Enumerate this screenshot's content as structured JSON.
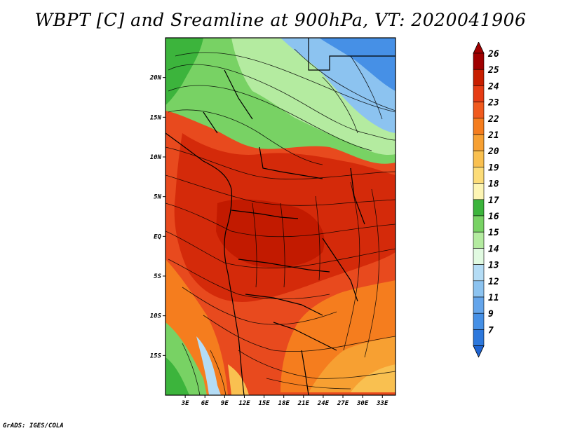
{
  "title": "WBPT [C] and Sreamline at 900hPa, VT: 2020041906",
  "credit": "GrADS: IGES/COLA",
  "map": {
    "lat_range": [
      -20,
      25
    ],
    "lon_range": [
      0,
      35
    ],
    "y_ticks": [
      {
        "value": 20,
        "label": "20N"
      },
      {
        "value": 15,
        "label": "15N"
      },
      {
        "value": 10,
        "label": "10N"
      },
      {
        "value": 5,
        "label": "5N"
      },
      {
        "value": 0,
        "label": "EQ"
      },
      {
        "value": -5,
        "label": "5S"
      },
      {
        "value": -10,
        "label": "10S"
      },
      {
        "value": -15,
        "label": "15S"
      }
    ],
    "x_ticks": [
      {
        "value": 3,
        "label": "3E"
      },
      {
        "value": 6,
        "label": "6E"
      },
      {
        "value": 9,
        "label": "9E"
      },
      {
        "value": 12,
        "label": "12E"
      },
      {
        "value": 15,
        "label": "15E"
      },
      {
        "value": 18,
        "label": "18E"
      },
      {
        "value": 21,
        "label": "21E"
      },
      {
        "value": 24,
        "label": "24E"
      },
      {
        "value": 27,
        "label": "27E"
      },
      {
        "value": 30,
        "label": "30E"
      },
      {
        "value": 33,
        "label": "33E"
      }
    ]
  },
  "colorbar": {
    "levels": [
      {
        "label": "26",
        "color": "#a00000"
      },
      {
        "label": "25",
        "color": "#c81e00"
      },
      {
        "label": "24",
        "color": "#e63c14"
      },
      {
        "label": "23",
        "color": "#f05a1e"
      },
      {
        "label": "22",
        "color": "#f57d1e"
      },
      {
        "label": "21",
        "color": "#f7a032"
      },
      {
        "label": "20",
        "color": "#f9c050"
      },
      {
        "label": "19",
        "color": "#fcdc78"
      },
      {
        "label": "18",
        "color": "#fdf5b4"
      },
      {
        "label": "17",
        "color": "#3cb43c"
      },
      {
        "label": "16",
        "color": "#78d264"
      },
      {
        "label": "15",
        "color": "#b4eba0"
      },
      {
        "label": "14",
        "color": "#e1fae1"
      },
      {
        "label": "13",
        "color": "#b4dcf5"
      },
      {
        "label": "12",
        "color": "#8cc3f0"
      },
      {
        "label": "11",
        "color": "#64a5eb"
      },
      {
        "label": "9",
        "color": "#4690e6"
      },
      {
        "label": "7",
        "color": "#2d78dc"
      }
    ],
    "bottom_color": "#1e64d2"
  }
}
